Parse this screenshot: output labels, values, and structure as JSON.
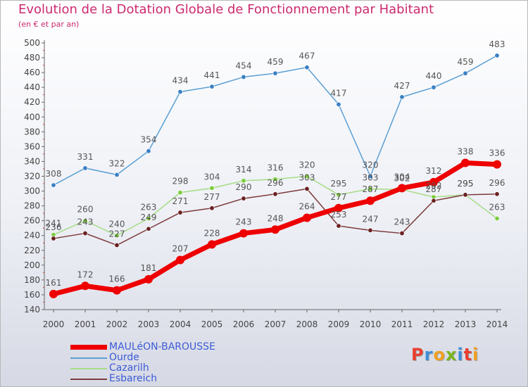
{
  "title": "Evolution de la Dotation Globale de Fonctionnement par Habitant",
  "subtitle": "(en € et par an)",
  "logo": {
    "text": "Proxiti",
    "letters": [
      {
        "ch": "P",
        "color": "#e8402f"
      },
      {
        "ch": "r",
        "color": "#3f8ed8"
      },
      {
        "ch": "o",
        "color": "#f0a020"
      },
      {
        "ch": "x",
        "color": "#7ab51d"
      },
      {
        "ch": "i",
        "color": "#3f8ed8"
      },
      {
        "ch": "t",
        "color": "#e8402f"
      },
      {
        "ch": "i",
        "color": "#f0a020"
      }
    ]
  },
  "chart_data": {
    "type": "line",
    "title": "Evolution de la Dotation Globale de Fonctionnement par Habitant",
    "subtitle": "(en € et par an)",
    "xlabel": "",
    "ylabel": "",
    "ylim": [
      140,
      500
    ],
    "ytick_step": 20,
    "grid": false,
    "legend_position": "bottom-left",
    "categories": [
      "2000",
      "2001",
      "2002",
      "2003",
      "2004",
      "2005",
      "2006",
      "2007",
      "2008",
      "2009",
      "2010",
      "2011",
      "2012",
      "2013",
      "2014"
    ],
    "series": [
      {
        "name": "Ourde",
        "color": "#5a9fd4",
        "marker_color": "#3a7fc4",
        "values": [
          308,
          331,
          322,
          354,
          434,
          441,
          454,
          459,
          467,
          417,
          320,
          427,
          440,
          459,
          483
        ]
      },
      {
        "name": "Cazarilh",
        "color": "#a6dc86",
        "marker_color": "#7ccc3c",
        "values": [
          241,
          260,
          240,
          263,
          298,
          304,
          314,
          316,
          320,
          295,
          303,
          302,
          292,
          295,
          263
        ]
      },
      {
        "name": "Esbareich",
        "color": "#7d3a3a",
        "marker_color": "#6a2020",
        "values": [
          236,
          243,
          227,
          249,
          271,
          277,
          290,
          296,
          303,
          253,
          247,
          243,
          287,
          295,
          296
        ]
      },
      {
        "name": "MAULéON-BAROUSSE",
        "color": "#ee0000",
        "marker_color": "#ee0000",
        "values": [
          161,
          172,
          166,
          181,
          207,
          228,
          243,
          248,
          264,
          277,
          287,
          304,
          312,
          338,
          336
        ]
      }
    ],
    "legend_order": [
      "MAULéON-BAROUSSE",
      "Ourde",
      "Cazarilh",
      "Esbareich"
    ]
  }
}
